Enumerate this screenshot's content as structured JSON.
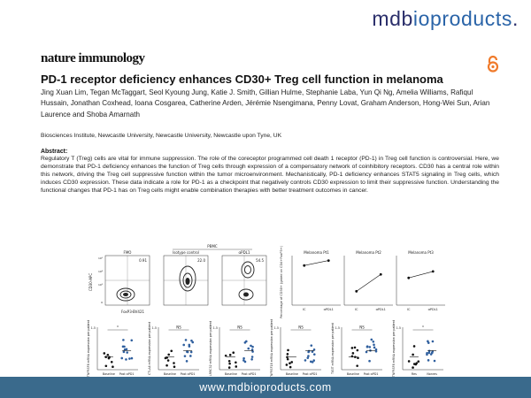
{
  "header": {
    "brand_part1": "mdb",
    "brand_part2": "ioproducts",
    "brand_part3": ".",
    "journal": "nature immunology"
  },
  "article": {
    "title": "PD-1 receptor deficiency enhances CD30+ Treg cell function in melanoma",
    "authors": "Jing Xuan Lim, Tegan McTaggart, Seol Kyoung Jung, Katie J. Smith, Gillian Hulme, Stephanie Laba, Yun Qi Ng, Amelia Williams, Rafiqul Hussain, Jonathan Coxhead, Ioana Cosgarea, Catherine Arden, Jérémie Nsengimana, Penny Lovat, Graham Anderson, Hong-Wei Sun, Arian Laurence and Shoba Amarnath",
    "affiliation": "Biosciences Institute, Newcastle University, Newcastle University, Newcastle upon Tyne, UK",
    "abstract_heading": "Abstract:",
    "abstract": "Regulatory T (Treg) cells are vital for immune suppression. The role of the coreceptor programmed cell death 1 receptor (PD-1) in Treg cell function is controversial. Here, we demonstrate that PD-1 deficiency enhances the function of Treg cells through expression of a compensatory network of coinhibitory receptors. CD30 has a central role within this network, driving the Treg cell suppressive function within the tumor microenvironment. Mechanistically, PD-1 deficiency enhances STAT5 signaling in Treg cells, which induces CD30 expression. These data indicate a role for PD-1 as a checkpoint that negatively controls CD30 expression to limit their suppressive function. Understanding the functional changes that PD-1 has on Treg cells might enable combination therapies with better treatment outcomes in cancer."
  },
  "figure": {
    "pbmc": "PBMC",
    "flow_y": "CD30-APC",
    "flow_x": "FoxP3-BV421",
    "flow_panels": [
      {
        "label": "FMO",
        "value": "0.91"
      },
      {
        "label": "Isotype control",
        "value": "22.0"
      },
      {
        "label": "αPDL1",
        "value": "54.5"
      }
    ],
    "pair_ylabel": "Percentage of CD30+ (gated on CD4+FoxP3+)",
    "pair_panels": [
      "Melanoma Pt1",
      "Melanoma Pt2",
      "Melanoma Pt3"
    ],
    "pair_x": [
      "IC",
      "αPDL1"
    ],
    "ns": "NS",
    "star": "*",
    "dot_axis_max": "1.5",
    "dot_x": [
      "Baseline",
      "Post αPD1"
    ],
    "dot_x_last": [
      "Res",
      "Nonres"
    ],
    "dot_panels": [
      {
        "ylabel": "TNFRSF8 mRNA expression per patient"
      },
      {
        "ylabel": "CTLA4 mRNA expression per patient"
      },
      {
        "ylabel": "LRRC32 mRNA expression per patient"
      },
      {
        "ylabel": "TNFRSF18 mRNA expression per patient"
      },
      {
        "ylabel": "TIGIT mRNA expression per patient"
      },
      {
        "ylabel": "TNFRSF8 mRNA expression per patient"
      }
    ]
  },
  "footer": {
    "url": "www.mdbioproducts.com"
  }
}
